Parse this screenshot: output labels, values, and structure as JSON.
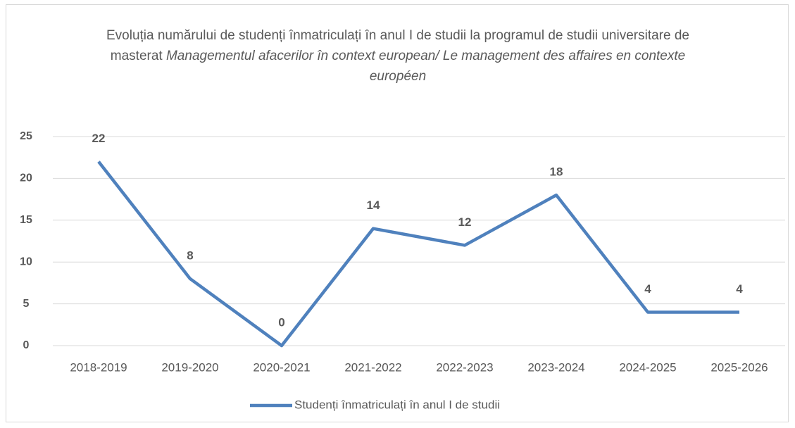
{
  "chart_data": {
    "type": "line",
    "title": {
      "text": "Evoluția numărului de studenți înmatriculați în anul I de studii la programul de studii universitare de masterat",
      "italic": "Managementul afacerilor în context european/ Le management des affaires en contexte européen"
    },
    "categories": [
      "2018-2019",
      "2019-2020",
      "2020-2021",
      "2021-2022",
      "2022-2023",
      "2023-2024",
      "2024-2025",
      "2025-2026"
    ],
    "series": [
      {
        "name": "Studenți înmatriculați în anul I de studii",
        "color": "#4f81bd",
        "values": [
          22,
          8,
          0,
          14,
          12,
          18,
          4,
          4
        ]
      }
    ],
    "ylim": [
      0,
      25
    ],
    "yticks": [
      0,
      5,
      10,
      15,
      20,
      25
    ],
    "grid": true,
    "legend": "bottom"
  }
}
